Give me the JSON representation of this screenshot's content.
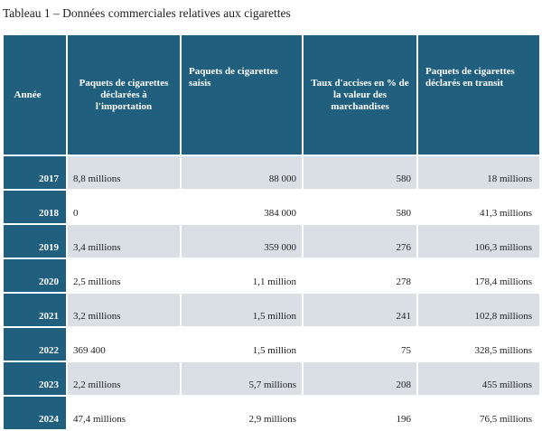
{
  "caption": "Tableau 1 – Données commerciales relatives aux cigarettes",
  "table": {
    "headers": [
      "Année",
      "Paquets de cigarettes déclarées à l'importation",
      "Paquets de cigarettes saisis",
      "Taux d'accises en % de la valeur des marchandises",
      "Paquets de cigarettes déclarés en transit"
    ],
    "rows": [
      {
        "year": "2017",
        "imports": "8,8 millions",
        "seized": "88 000",
        "tax": "580",
        "transit": "18 millions"
      },
      {
        "year": "2018",
        "imports": "0",
        "seized": "384 000",
        "tax": "580",
        "transit": "41,3 millions"
      },
      {
        "year": "2019",
        "imports": "3,4 millions",
        "seized": "359 000",
        "tax": "276",
        "transit": "106,3 millions"
      },
      {
        "year": "2020",
        "imports": "2,5 millions",
        "seized": "1,1 million",
        "tax": "278",
        "transit": "178,4 millions"
      },
      {
        "year": "2021",
        "imports": "3,2 millions",
        "seized": "1,5 million",
        "tax": "241",
        "transit": "102,8 millions"
      },
      {
        "year": "2022",
        "imports": "369 400",
        "seized": "1,5 million",
        "tax": "75",
        "transit": "328,5 millions"
      },
      {
        "year": "2023",
        "imports": "2,2 millions",
        "seized": "5,7 millions",
        "tax": "208",
        "transit": "455 millions"
      },
      {
        "year": "2024",
        "imports": "47,4 millions",
        "seized": "2,9 millions",
        "tax": "196",
        "transit": "76,5 millions"
      }
    ]
  }
}
